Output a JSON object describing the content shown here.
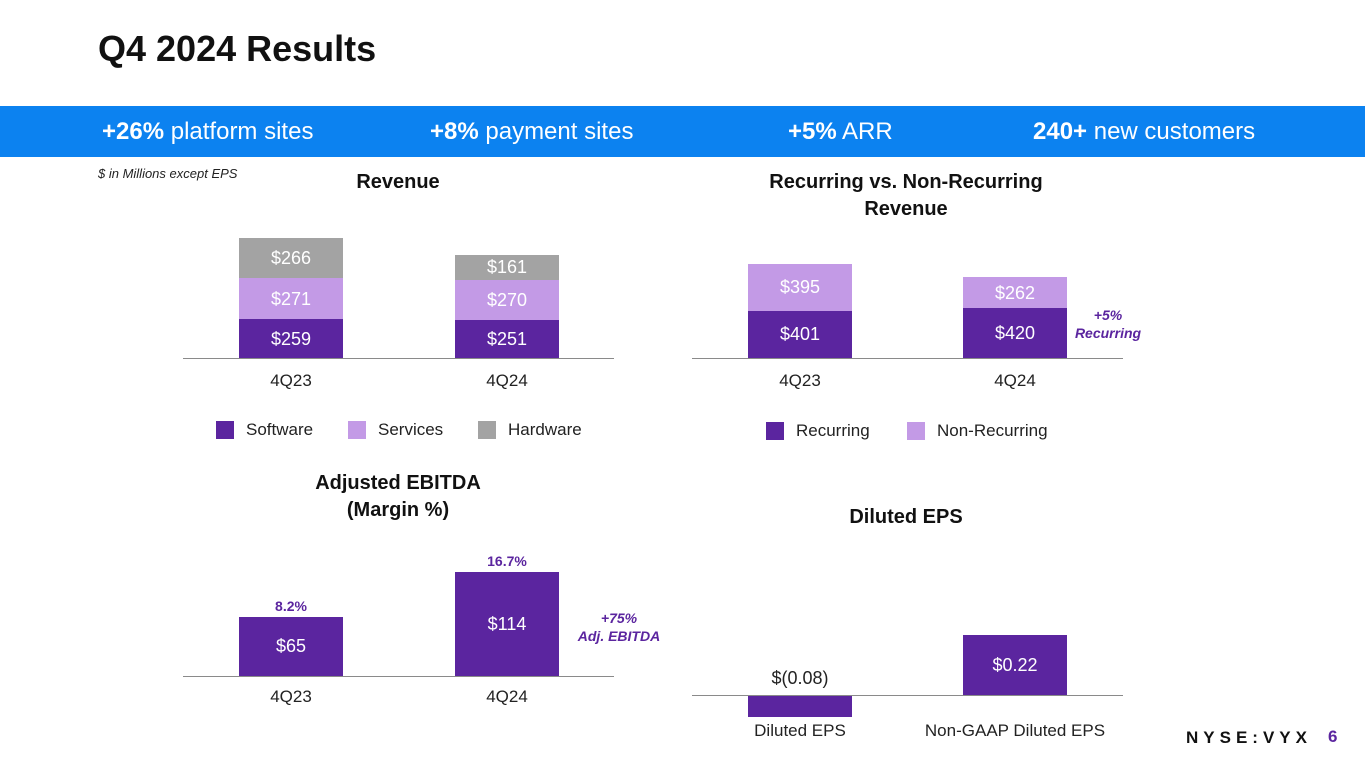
{
  "title": "Q4 2024 Results",
  "highlights": [
    {
      "bold": "+26%",
      "text": " platform sites"
    },
    {
      "bold": "+8%",
      "text": " payment sites"
    },
    {
      "bold": "+5%",
      "text": " ARR"
    },
    {
      "bold": "240+",
      "text": " new customers"
    }
  ],
  "units_note": "$ in Millions except EPS",
  "colors": {
    "banner": "#0c82f0",
    "software": "#5b259f",
    "services": "#c39ae6",
    "hardware": "#a3a3a3",
    "accent": "#5b259f"
  },
  "chart_data": [
    {
      "type": "bar",
      "stacked": true,
      "title": "Revenue",
      "categories": [
        "4Q23",
        "4Q24"
      ],
      "series": [
        {
          "name": "Software",
          "values": [
            259,
            251
          ],
          "labels": [
            "$259",
            "$251"
          ]
        },
        {
          "name": "Services",
          "values": [
            271,
            270
          ],
          "labels": [
            "$271",
            "$270"
          ]
        },
        {
          "name": "Hardware",
          "values": [
            266,
            161
          ],
          "labels": [
            "$266",
            "$161"
          ]
        }
      ],
      "legend": [
        "Software",
        "Services",
        "Hardware"
      ]
    },
    {
      "type": "bar",
      "stacked": true,
      "title": "Recurring vs. Non-Recurring Revenue",
      "categories": [
        "4Q23",
        "4Q24"
      ],
      "series": [
        {
          "name": "Recurring",
          "values": [
            401,
            420
          ],
          "labels": [
            "$401",
            "$420"
          ]
        },
        {
          "name": "Non-Recurring",
          "values": [
            395,
            262
          ],
          "labels": [
            "$395",
            "$262"
          ]
        }
      ],
      "legend": [
        "Recurring",
        "Non-Recurring"
      ],
      "annotation": [
        "+5%",
        "Recurring"
      ]
    },
    {
      "type": "bar",
      "title": "Adjusted EBITDA (Margin %)",
      "title_lines": [
        "Adjusted EBITDA",
        "(Margin %)"
      ],
      "categories": [
        "4Q23",
        "4Q24"
      ],
      "values": [
        65,
        114
      ],
      "labels": [
        "$65",
        "$114"
      ],
      "margins": [
        "8.2%",
        "16.7%"
      ],
      "annotation": [
        "+75%",
        "Adj. EBITDA"
      ]
    },
    {
      "type": "bar",
      "title": "Diluted EPS",
      "categories": [
        "Diluted EPS",
        "Non-GAAP Diluted EPS"
      ],
      "values": [
        -0.08,
        0.22
      ],
      "labels": [
        "$(0.08)",
        "$0.22"
      ]
    }
  ],
  "footer": {
    "ticker": "NYSE:VYX",
    "page": "6"
  }
}
